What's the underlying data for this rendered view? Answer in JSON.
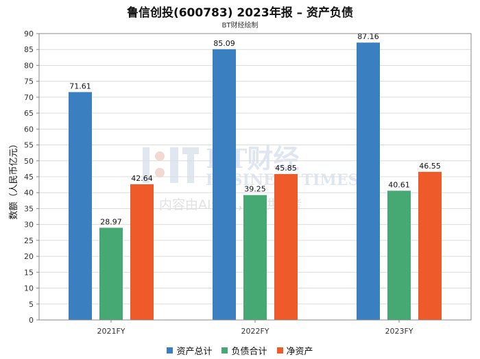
{
  "title": "鲁信创投(600783) 2023年报 – 资产负债",
  "subtitle": "BT财经绘制",
  "watermark": {
    "line1": "BT财经",
    "line2": "BUSINESS TIMES",
    "line3": "内容由AI生成，仅供参考"
  },
  "colors": {
    "series": [
      "#3a80c0",
      "#46a872",
      "#ee5a2a"
    ],
    "grid": "#dcdcdc",
    "axis": "#888888"
  },
  "chart_data": {
    "type": "bar",
    "categories": [
      "2021FY",
      "2022FY",
      "2023FY"
    ],
    "series": [
      {
        "name": "资产总计",
        "values": [
          71.61,
          85.09,
          87.16
        ]
      },
      {
        "name": "负债合计",
        "values": [
          28.97,
          39.25,
          40.61
        ]
      },
      {
        "name": "净资产",
        "values": [
          42.64,
          45.85,
          46.55
        ]
      }
    ],
    "ylabel": "数额（人民币亿元）",
    "xlabel": "",
    "ylim": [
      0,
      90
    ],
    "yticks": [
      0,
      5,
      10,
      15,
      20,
      25,
      30,
      35,
      40,
      45,
      50,
      55,
      60,
      65,
      70,
      75,
      80,
      85,
      90
    ],
    "grid": true,
    "legend": "bottom"
  }
}
